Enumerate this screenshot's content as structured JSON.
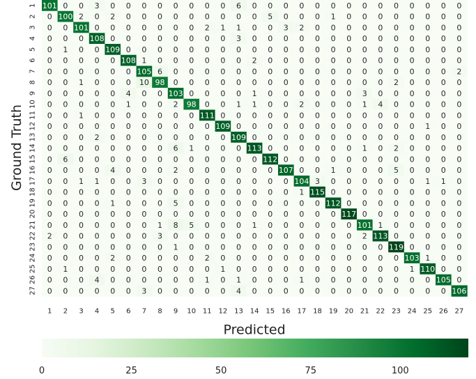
{
  "chart_data": {
    "type": "heatmap",
    "title": "",
    "xlabel": "Predicted",
    "ylabel": "Ground Truth",
    "x_categories": [
      "1",
      "2",
      "3",
      "4",
      "5",
      "6",
      "7",
      "8",
      "9",
      "10",
      "11",
      "12",
      "13",
      "14",
      "15",
      "16",
      "17",
      "18",
      "19",
      "20",
      "21",
      "22",
      "23",
      "24",
      "25",
      "26",
      "27"
    ],
    "y_categories": [
      "1",
      "2",
      "3",
      "4",
      "5",
      "6",
      "7",
      "8",
      "9",
      "10",
      "11",
      "12",
      "13",
      "14",
      "15",
      "16",
      "17",
      "18",
      "19",
      "20",
      "21",
      "22",
      "23",
      "24",
      "25",
      "26",
      "27"
    ],
    "matrix": [
      [
        101,
        0,
        0,
        3,
        0,
        0,
        0,
        0,
        0,
        0,
        0,
        0,
        6,
        0,
        0,
        0,
        0,
        0,
        0,
        0,
        0,
        0,
        0,
        0,
        0,
        0,
        0
      ],
      [
        0,
        100,
        2,
        0,
        2,
        0,
        0,
        0,
        0,
        0,
        0,
        0,
        0,
        0,
        5,
        0,
        0,
        0,
        1,
        0,
        0,
        0,
        0,
        0,
        0,
        0,
        0
      ],
      [
        0,
        0,
        101,
        0,
        0,
        0,
        0,
        0,
        0,
        0,
        2,
        1,
        1,
        0,
        0,
        3,
        2,
        0,
        0,
        0,
        0,
        0,
        0,
        0,
        0,
        0,
        0
      ],
      [
        0,
        0,
        0,
        108,
        0,
        0,
        0,
        0,
        0,
        0,
        0,
        0,
        3,
        0,
        0,
        0,
        0,
        0,
        0,
        0,
        0,
        0,
        0,
        0,
        0,
        0,
        0
      ],
      [
        0,
        1,
        0,
        0,
        109,
        0,
        0,
        0,
        0,
        0,
        0,
        0,
        0,
        0,
        0,
        0,
        0,
        0,
        0,
        0,
        0,
        0,
        0,
        0,
        0,
        0,
        0
      ],
      [
        0,
        0,
        0,
        0,
        0,
        108,
        1,
        0,
        0,
        0,
        0,
        0,
        0,
        2,
        0,
        0,
        0,
        0,
        0,
        0,
        0,
        0,
        0,
        0,
        0,
        0,
        0
      ],
      [
        0,
        0,
        0,
        0,
        0,
        0,
        105,
        6,
        0,
        0,
        0,
        0,
        0,
        0,
        0,
        0,
        0,
        0,
        0,
        0,
        0,
        0,
        0,
        0,
        0,
        0,
        2
      ],
      [
        0,
        0,
        1,
        0,
        0,
        0,
        10,
        98,
        0,
        0,
        0,
        0,
        0,
        0,
        0,
        0,
        0,
        0,
        0,
        0,
        0,
        0,
        2,
        0,
        0,
        0,
        0
      ],
      [
        0,
        0,
        0,
        0,
        0,
        4,
        0,
        0,
        103,
        0,
        0,
        0,
        0,
        1,
        0,
        0,
        0,
        0,
        0,
        0,
        3,
        0,
        0,
        0,
        0,
        0,
        0
      ],
      [
        0,
        0,
        0,
        0,
        0,
        1,
        0,
        0,
        2,
        98,
        0,
        0,
        1,
        1,
        0,
        0,
        2,
        0,
        0,
        0,
        1,
        4,
        0,
        0,
        0,
        0,
        0
      ],
      [
        0,
        0,
        1,
        0,
        0,
        0,
        0,
        0,
        0,
        0,
        111,
        0,
        0,
        0,
        0,
        0,
        0,
        0,
        0,
        0,
        0,
        0,
        0,
        0,
        0,
        0,
        0
      ],
      [
        0,
        0,
        0,
        0,
        0,
        0,
        0,
        0,
        0,
        0,
        0,
        109,
        0,
        0,
        0,
        0,
        0,
        0,
        0,
        0,
        0,
        0,
        0,
        0,
        1,
        0,
        0
      ],
      [
        0,
        0,
        0,
        2,
        0,
        0,
        0,
        0,
        0,
        0,
        0,
        0,
        109,
        0,
        0,
        0,
        0,
        0,
        0,
        0,
        0,
        0,
        0,
        0,
        0,
        0,
        0
      ],
      [
        0,
        0,
        0,
        0,
        0,
        0,
        0,
        0,
        6,
        1,
        0,
        0,
        0,
        113,
        0,
        0,
        0,
        0,
        0,
        0,
        1,
        0,
        2,
        0,
        0,
        0,
        0
      ],
      [
        0,
        6,
        0,
        0,
        0,
        0,
        0,
        0,
        0,
        0,
        0,
        0,
        0,
        0,
        112,
        0,
        0,
        0,
        0,
        0,
        0,
        0,
        0,
        0,
        0,
        0,
        0
      ],
      [
        0,
        0,
        0,
        0,
        4,
        0,
        0,
        0,
        2,
        0,
        0,
        0,
        0,
        0,
        0,
        107,
        0,
        0,
        1,
        0,
        0,
        0,
        5,
        0,
        0,
        0,
        0
      ],
      [
        0,
        0,
        1,
        1,
        0,
        0,
        3,
        0,
        0,
        0,
        0,
        0,
        0,
        0,
        0,
        0,
        104,
        3,
        0,
        0,
        0,
        0,
        0,
        0,
        1,
        1,
        0
      ],
      [
        0,
        0,
        0,
        0,
        0,
        0,
        0,
        0,
        0,
        0,
        0,
        0,
        0,
        0,
        0,
        0,
        1,
        115,
        0,
        0,
        0,
        0,
        0,
        0,
        0,
        0,
        0
      ],
      [
        0,
        0,
        0,
        0,
        1,
        0,
        0,
        0,
        5,
        0,
        0,
        0,
        0,
        0,
        0,
        0,
        0,
        0,
        112,
        0,
        0,
        0,
        0,
        0,
        0,
        0,
        0
      ],
      [
        0,
        0,
        0,
        0,
        0,
        0,
        0,
        0,
        0,
        0,
        0,
        0,
        0,
        0,
        0,
        0,
        0,
        0,
        0,
        117,
        0,
        0,
        0,
        0,
        0,
        0,
        0
      ],
      [
        0,
        0,
        0,
        0,
        0,
        0,
        0,
        1,
        8,
        5,
        0,
        0,
        0,
        1,
        0,
        0,
        0,
        0,
        0,
        0,
        101,
        1,
        0,
        0,
        0,
        0,
        0
      ],
      [
        2,
        0,
        0,
        0,
        0,
        0,
        0,
        3,
        0,
        0,
        0,
        0,
        0,
        0,
        0,
        0,
        0,
        0,
        0,
        0,
        2,
        113,
        0,
        0,
        0,
        0,
        0
      ],
      [
        0,
        0,
        0,
        0,
        0,
        0,
        0,
        0,
        1,
        0,
        0,
        0,
        0,
        0,
        0,
        0,
        0,
        0,
        0,
        0,
        0,
        0,
        119,
        0,
        0,
        0,
        0
      ],
      [
        0,
        0,
        0,
        0,
        2,
        0,
        0,
        0,
        0,
        0,
        2,
        0,
        0,
        0,
        0,
        0,
        0,
        0,
        0,
        0,
        0,
        0,
        0,
        103,
        1,
        0,
        0
      ],
      [
        0,
        1,
        0,
        0,
        0,
        0,
        0,
        0,
        0,
        0,
        0,
        1,
        0,
        0,
        0,
        0,
        0,
        0,
        0,
        0,
        0,
        0,
        0,
        1,
        110,
        0,
        0
      ],
      [
        0,
        0,
        0,
        4,
        0,
        0,
        0,
        0,
        0,
        0,
        1,
        0,
        1,
        0,
        0,
        0,
        1,
        0,
        0,
        0,
        0,
        0,
        0,
        0,
        0,
        105,
        0
      ],
      [
        0,
        0,
        0,
        0,
        0,
        0,
        3,
        0,
        0,
        0,
        0,
        0,
        4,
        0,
        0,
        0,
        0,
        0,
        0,
        0,
        0,
        0,
        0,
        0,
        0,
        0,
        106
      ]
    ],
    "colorbar": {
      "min": 0,
      "max": 119,
      "ticks": [
        0,
        25,
        50,
        75,
        100
      ]
    },
    "colormap": [
      "#f7fcf5",
      "#e5f5e0",
      "#c7e9c0",
      "#a1d99b",
      "#74c476",
      "#41ab5d",
      "#238b45",
      "#006d2c",
      "#00441b"
    ],
    "grid": false,
    "legend": "colorbar-bottom"
  }
}
